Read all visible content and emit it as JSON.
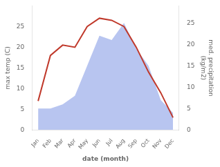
{
  "chart_data": {
    "type": "line",
    "xlabel": "date (month)",
    "ylabel": "max temp (C)",
    "y2label": "med. precipitation\n(kg/m2)",
    "categories": [
      "Jan",
      "Feb",
      "Mar",
      "Apr",
      "May",
      "Jun",
      "Jul",
      "Aug",
      "Sep",
      "Oct",
      "Nov",
      "Dec"
    ],
    "series": [
      {
        "type": "area",
        "color": "#b8c5f0",
        "axis": "y2",
        "values": [
          5,
          5,
          6,
          8,
          15,
          22,
          21,
          25,
          19,
          15,
          7,
          4
        ]
      },
      {
        "type": "line",
        "color": "#c0392b",
        "values": [
          7,
          18,
          20.5,
          20,
          25,
          27,
          26.5,
          25,
          20,
          14,
          9,
          3
        ]
      }
    ],
    "ylim": [
      0,
      30
    ],
    "yticks": [
      0,
      5,
      10,
      15,
      20,
      25
    ],
    "y2lim": [
      0,
      29
    ],
    "y2ticks": [
      0,
      5,
      10,
      15,
      20,
      25
    ],
    "grid": false
  }
}
